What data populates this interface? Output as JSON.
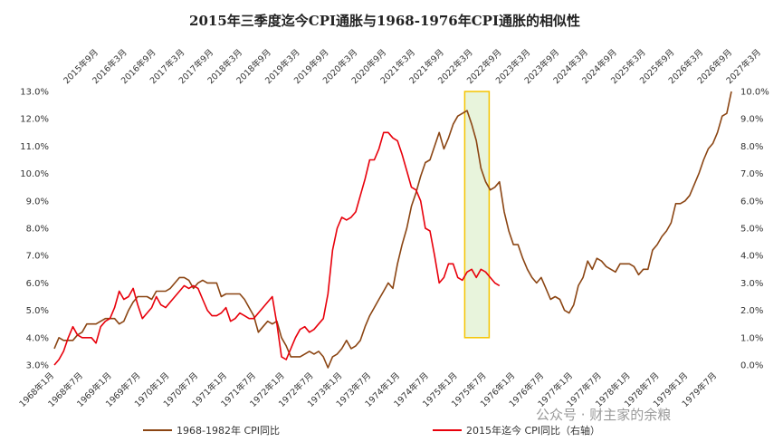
{
  "chart_data": {
    "type": "line",
    "title": "2015年三季度迄今CPI通胀与1968-1976年CPI通胀的相似性",
    "y_left": {
      "min": 3.0,
      "max": 13.0,
      "step": 1.0,
      "tick_labels": [
        "3.0%",
        "4.0%",
        "5.0%",
        "6.0%",
        "7.0%",
        "8.0%",
        "9.0%",
        "10.0%",
        "11.0%",
        "12.0%",
        "13.0%"
      ]
    },
    "y_right": {
      "min": 0.0,
      "max": 10.0,
      "step": 1.0,
      "tick_labels": [
        "0.0%",
        "1.0%",
        "2.0%",
        "3.0%",
        "4.0%",
        "5.0%",
        "6.0%",
        "7.0%",
        "8.0%",
        "9.0%",
        "10.0%"
      ]
    },
    "x_bottom_labels": [
      "1968年1月",
      "1968年7月",
      "1969年1月",
      "1969年7月",
      "1970年1月",
      "1970年7月",
      "1971年1月",
      "1971年7月",
      "1972年1月",
      "1972年7月",
      "1973年1月",
      "1973年7月",
      "1974年1月",
      "1974年7月",
      "1975年1月",
      "1975年7月",
      "1976年1月",
      "1976年7月",
      "1977年1月",
      "1977年7月",
      "1978年1月",
      "1978年7月",
      "1979年1月",
      "1979年7月"
    ],
    "x_top_labels": [
      "2015年9月",
      "2016年3月",
      "2016年9月",
      "2017年3月",
      "2017年9月",
      "2018年3月",
      "2018年9月",
      "2019年3月",
      "2019年9月",
      "2020年3月",
      "2020年9月",
      "2021年3月",
      "2021年9月",
      "2022年3月",
      "2022年9月",
      "2023年3月",
      "2023年9月",
      "2024年3月",
      "2024年9月",
      "2025年3月",
      "2025年9月",
      "2026年3月",
      "2026年9月",
      "2027年3月"
    ],
    "series": [
      {
        "name": "1968-1982年 CPI同比",
        "axis": "left",
        "color": "#8B4513",
        "values": [
          3.6,
          4.0,
          3.9,
          3.9,
          3.9,
          4.1,
          4.2,
          4.5,
          4.5,
          4.5,
          4.6,
          4.7,
          4.7,
          4.7,
          4.5,
          4.6,
          5.0,
          5.3,
          5.5,
          5.5,
          5.5,
          5.4,
          5.7,
          5.7,
          5.7,
          5.8,
          6.0,
          6.2,
          6.2,
          6.1,
          5.8,
          6.0,
          6.1,
          6.0,
          6.0,
          6.0,
          5.5,
          5.6,
          5.6,
          5.6,
          5.6,
          5.4,
          5.1,
          4.8,
          4.2,
          4.4,
          4.6,
          4.5,
          4.6,
          4.0,
          3.7,
          3.3,
          3.3,
          3.3,
          3.4,
          3.5,
          3.4,
          3.5,
          3.3,
          2.9,
          3.3,
          3.4,
          3.6,
          3.9,
          3.6,
          3.7,
          3.9,
          4.4,
          4.8,
          5.1,
          5.4,
          5.7,
          6.0,
          5.8,
          6.7,
          7.4,
          8.0,
          8.8,
          9.3,
          9.9,
          10.4,
          10.5,
          11.0,
          11.5,
          10.9,
          11.3,
          11.8,
          12.1,
          12.2,
          12.3,
          11.8,
          11.2,
          10.2,
          9.7,
          9.4,
          9.5,
          9.7,
          8.6,
          7.9,
          7.4,
          7.4,
          6.9,
          6.5,
          6.2,
          6.0,
          6.2,
          5.8,
          5.4,
          5.5,
          5.4,
          5.0,
          4.9,
          5.2,
          5.9,
          6.2,
          6.8,
          6.5,
          6.9,
          6.8,
          6.6,
          6.5,
          6.4,
          6.7,
          6.7,
          6.7,
          6.6,
          6.3,
          6.5,
          6.5,
          7.2,
          7.4,
          7.7,
          7.9,
          8.2,
          8.9,
          8.9,
          9.0,
          9.2,
          9.6,
          10.0,
          10.5,
          10.9,
          11.1,
          11.5,
          12.1,
          12.2,
          13.0
        ]
      },
      {
        "name": "2015年迄今 CPI同比（右轴）",
        "axis": "right",
        "color": "#E8000B",
        "start_label": "2015年9月",
        "values": [
          0.0,
          0.2,
          0.5,
          1.0,
          1.4,
          1.1,
          1.0,
          1.0,
          1.0,
          0.8,
          1.4,
          1.6,
          1.7,
          2.1,
          2.7,
          2.4,
          2.5,
          2.8,
          2.2,
          1.7,
          1.9,
          2.1,
          2.5,
          2.2,
          2.1,
          2.3,
          2.5,
          2.7,
          2.9,
          2.8,
          2.9,
          2.8,
          2.4,
          2.0,
          1.8,
          1.8,
          1.9,
          2.1,
          1.6,
          1.7,
          1.9,
          1.8,
          1.7,
          1.7,
          1.9,
          2.1,
          2.3,
          2.5,
          1.5,
          0.3,
          0.2,
          0.6,
          1.0,
          1.3,
          1.4,
          1.2,
          1.3,
          1.5,
          1.7,
          2.6,
          4.2,
          5.0,
          5.4,
          5.3,
          5.4,
          5.6,
          6.2,
          6.8,
          7.5,
          7.5,
          7.9,
          8.5,
          8.5,
          8.3,
          8.2,
          7.7,
          7.1,
          6.5,
          6.4,
          6.0,
          5.0,
          4.9,
          4.0,
          3.0,
          3.2,
          3.7,
          3.7,
          3.2,
          3.1,
          3.4,
          3.5,
          3.2,
          3.5,
          3.4,
          3.2,
          3.0,
          2.9
        ]
      }
    ],
    "legend_position": "bottom",
    "highlight_box": {
      "x_from": 2024.67,
      "x_to": 2025.0,
      "y_from_left": 4.0,
      "y_to_left": 13.0,
      "color": "#F5C400",
      "fill": "#E8F4DC"
    },
    "grid": false
  },
  "watermark": "公众号 · 财主家的余粮"
}
